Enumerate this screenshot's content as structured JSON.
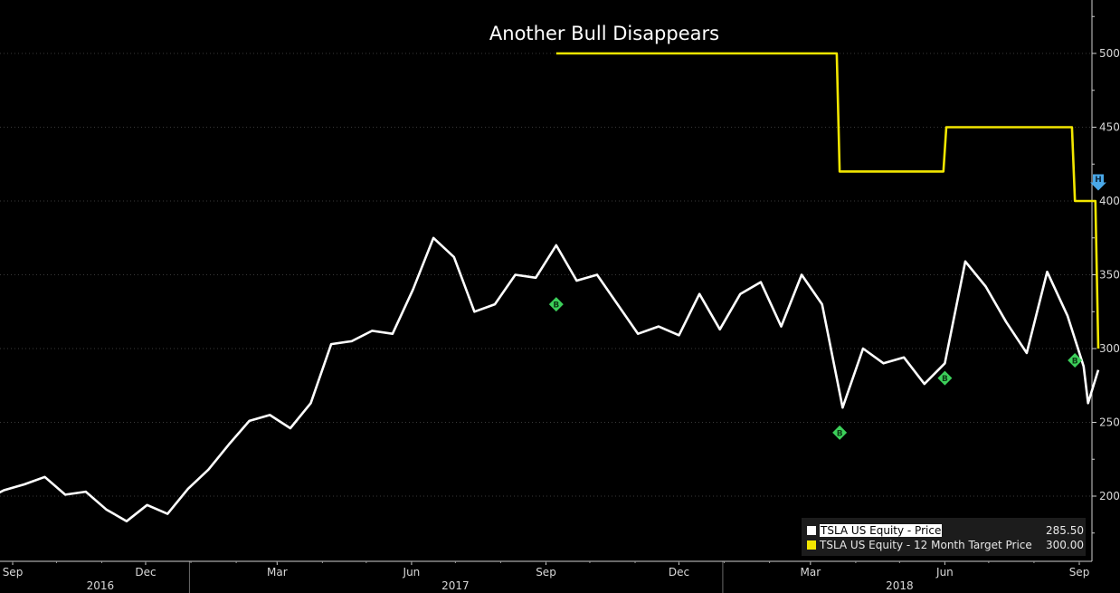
{
  "chart_data": {
    "type": "line",
    "title": "Another Bull Disappears",
    "y_axis": {
      "position": "right",
      "ylim": [
        172,
        530
      ],
      "ticks": [
        200,
        250,
        300,
        350,
        400,
        450,
        500
      ],
      "grid": "dotted"
    },
    "x_axis": {
      "month_ticks": [
        {
          "label": "Sep",
          "date": "2016-09-01"
        },
        {
          "label": "Dec",
          "date": "2016-12-01"
        },
        {
          "label": "Mar",
          "date": "2017-03-01"
        },
        {
          "label": "Jun",
          "date": "2017-06-01"
        },
        {
          "label": "Sep",
          "date": "2017-09-01"
        },
        {
          "label": "Dec",
          "date": "2017-12-01"
        },
        {
          "label": "Mar",
          "date": "2018-03-01"
        },
        {
          "label": "Jun",
          "date": "2018-06-01"
        },
        {
          "label": "Sep",
          "date": "2018-09-01"
        }
      ],
      "year_labels": [
        {
          "label": "2016",
          "date": "2016-10-31"
        },
        {
          "label": "2017",
          "date": "2017-07-01"
        },
        {
          "label": "2018",
          "date": "2018-05-01"
        }
      ],
      "year_dividers": [
        "2016-12-31",
        "2017-12-31"
      ]
    },
    "series": [
      {
        "name": "TSLA US Equity - Price",
        "color": "#ffffff",
        "last_value": "285.50",
        "points": [
          [
            "2016-08-12",
            197
          ],
          [
            "2016-08-26",
            204
          ],
          [
            "2016-09-09",
            208
          ],
          [
            "2016-09-23",
            213
          ],
          [
            "2016-10-07",
            201
          ],
          [
            "2016-10-21",
            203
          ],
          [
            "2016-11-04",
            191
          ],
          [
            "2016-11-18",
            183
          ],
          [
            "2016-12-02",
            194
          ],
          [
            "2016-12-16",
            188
          ],
          [
            "2016-12-30",
            205
          ],
          [
            "2017-01-13",
            218
          ],
          [
            "2017-01-27",
            235
          ],
          [
            "2017-02-10",
            251
          ],
          [
            "2017-02-24",
            255
          ],
          [
            "2017-03-10",
            246
          ],
          [
            "2017-03-24",
            263
          ],
          [
            "2017-04-07",
            303
          ],
          [
            "2017-04-21",
            305
          ],
          [
            "2017-05-05",
            312
          ],
          [
            "2017-05-19",
            310
          ],
          [
            "2017-06-02",
            340
          ],
          [
            "2017-06-16",
            375
          ],
          [
            "2017-06-30",
            362
          ],
          [
            "2017-07-14",
            325
          ],
          [
            "2017-07-28",
            330
          ],
          [
            "2017-08-11",
            350
          ],
          [
            "2017-08-25",
            348
          ],
          [
            "2017-09-08",
            370
          ],
          [
            "2017-09-22",
            346
          ],
          [
            "2017-10-06",
            350
          ],
          [
            "2017-10-20",
            330
          ],
          [
            "2017-11-03",
            310
          ],
          [
            "2017-11-17",
            315
          ],
          [
            "2017-12-01",
            309
          ],
          [
            "2017-12-15",
            337
          ],
          [
            "2017-12-29",
            313
          ],
          [
            "2018-01-12",
            337
          ],
          [
            "2018-01-26",
            345
          ],
          [
            "2018-02-09",
            315
          ],
          [
            "2018-02-23",
            350
          ],
          [
            "2018-03-09",
            330
          ],
          [
            "2018-03-23",
            260
          ],
          [
            "2018-04-06",
            300
          ],
          [
            "2018-04-20",
            290
          ],
          [
            "2018-05-04",
            294
          ],
          [
            "2018-05-18",
            276
          ],
          [
            "2018-06-01",
            290
          ],
          [
            "2018-06-15",
            359
          ],
          [
            "2018-06-29",
            342
          ],
          [
            "2018-07-13",
            318
          ],
          [
            "2018-07-27",
            297
          ],
          [
            "2018-08-10",
            352
          ],
          [
            "2018-08-24",
            322
          ],
          [
            "2018-09-04",
            288
          ],
          [
            "2018-09-07",
            263
          ],
          [
            "2018-09-14",
            285.5
          ]
        ]
      },
      {
        "name": "TSLA US Equity - 12 Month Target Price",
        "color": "#f2e600",
        "last_value": "300.00",
        "points": [
          [
            "2017-09-08",
            500
          ],
          [
            "2018-03-19",
            500
          ],
          [
            "2018-03-21",
            420
          ],
          [
            "2018-05-31",
            420
          ],
          [
            "2018-06-02",
            450
          ],
          [
            "2018-08-27",
            450
          ],
          [
            "2018-08-29",
            400
          ],
          [
            "2018-09-12",
            400
          ],
          [
            "2018-09-14",
            300
          ]
        ]
      }
    ],
    "markers": [
      {
        "type": "B",
        "date": "2017-09-08",
        "value": 330
      },
      {
        "type": "B",
        "date": "2018-03-21",
        "value": 243
      },
      {
        "type": "B",
        "date": "2018-06-01",
        "value": 280
      },
      {
        "type": "B",
        "date": "2018-08-29",
        "value": 292
      },
      {
        "type": "H",
        "date": "2018-09-14",
        "value": 412
      }
    ],
    "legend_placement": "bottom-right"
  }
}
